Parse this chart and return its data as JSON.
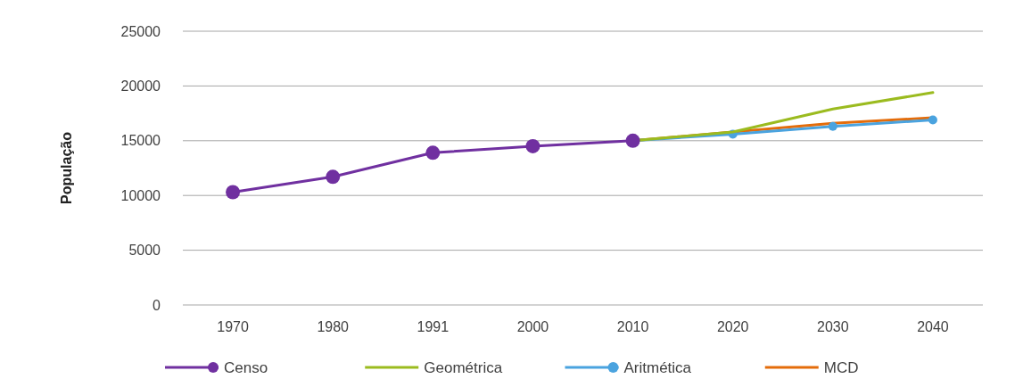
{
  "chart_data": {
    "type": "line",
    "ylabel": "População",
    "categories": [
      "1970",
      "1980",
      "1991",
      "2000",
      "2010",
      "2020",
      "2030",
      "2040"
    ],
    "series": [
      {
        "name": "Censo",
        "color": "#7030a0",
        "marker": "circle",
        "values": [
          10300,
          11700,
          13900,
          14500,
          15000,
          null,
          null,
          null
        ]
      },
      {
        "name": "Geométrica",
        "color": "#9bbb1f",
        "marker": "none",
        "values": [
          null,
          null,
          null,
          null,
          15000,
          15800,
          17900,
          19400
        ]
      },
      {
        "name": "Aritmética",
        "color": "#4aa3df",
        "marker": "circle",
        "values": [
          null,
          null,
          null,
          null,
          15000,
          15600,
          16300,
          16900
        ]
      },
      {
        "name": "MCD",
        "color": "#e46c0a",
        "marker": "none",
        "values": [
          null,
          null,
          null,
          null,
          15000,
          15800,
          16600,
          17100
        ]
      }
    ],
    "ylim": [
      0,
      25000
    ],
    "yticks": [
      0,
      5000,
      10000,
      15000,
      20000,
      25000
    ],
    "grid": "y",
    "legend": "bottom"
  }
}
